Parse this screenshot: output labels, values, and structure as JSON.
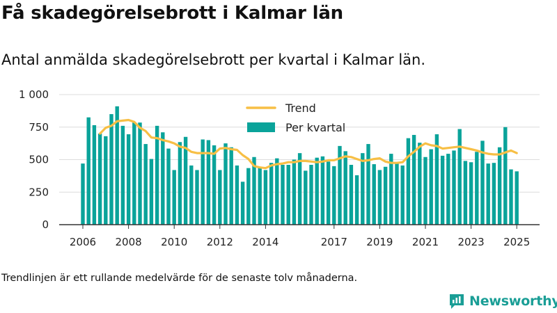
{
  "title": "Få skadegörelsebrott i Kalmar län",
  "subtitle": "Antal anmälda skadegörelsebrott per kvartal i Kalmar län.",
  "footnote": "Trendlinjen är ett rullande medelvärde för de senaste tolv månaderna.",
  "brand": {
    "name": "Newsworthy",
    "icon": "newsworthy-logo-icon"
  },
  "colors": {
    "bars": "#0aa39a",
    "trend": "#f7bf45",
    "grid": "#dcdcdc",
    "axis": "#333333",
    "brand": "#1a9e96"
  },
  "chart_data": {
    "type": "bar",
    "x_start_year": 2006,
    "periods_per_year": 4,
    "ylim": [
      0,
      1000
    ],
    "grid": true,
    "legend_position": "top-center",
    "yticks": [
      0,
      250,
      500,
      750,
      1000
    ],
    "ytick_labels": [
      "0",
      "250",
      "500",
      "750",
      "1 000"
    ],
    "xtick_labels": [
      "2006",
      "2008",
      "2010",
      "2012",
      "2014",
      "2017",
      "2019",
      "2021",
      "2023",
      "2025"
    ],
    "xtick_years": [
      2006,
      2008,
      2010,
      2012,
      2014,
      2017,
      2019,
      2021,
      2023,
      2025
    ],
    "series": [
      {
        "name": "Per kvartal",
        "kind": "bar",
        "values": [
          470,
          825,
          765,
          700,
          680,
          850,
          910,
          760,
          695,
          785,
          785,
          620,
          505,
          760,
          710,
          585,
          420,
          635,
          675,
          455,
          420,
          655,
          650,
          610,
          420,
          625,
          595,
          455,
          330,
          435,
          520,
          440,
          420,
          475,
          510,
          460,
          460,
          500,
          550,
          415,
          460,
          515,
          525,
          485,
          450,
          605,
          565,
          460,
          380,
          550,
          620,
          465,
          420,
          445,
          545,
          470,
          455,
          665,
          690,
          630,
          520,
          580,
          695,
          530,
          545,
          570,
          735,
          490,
          480,
          560,
          645,
          470,
          475,
          595,
          750,
          425,
          410
        ]
      },
      {
        "name": "Trend",
        "kind": "line",
        "values": [
          null,
          null,
          null,
          700,
          745,
          760,
          795,
          800,
          805,
          790,
          745,
          720,
          670,
          665,
          650,
          640,
          625,
          600,
          590,
          560,
          550,
          550,
          550,
          545,
          585,
          590,
          580,
          575,
          535,
          505,
          450,
          440,
          435,
          455,
          465,
          470,
          480,
          480,
          490,
          490,
          485,
          480,
          485,
          495,
          495,
          510,
          525,
          520,
          505,
          490,
          495,
          505,
          510,
          485,
          475,
          475,
          480,
          525,
          560,
          600,
          625,
          610,
          605,
          585,
          590,
          595,
          600,
          590,
          580,
          570,
          555,
          545,
          540,
          540,
          555,
          570,
          550
        ]
      }
    ]
  }
}
